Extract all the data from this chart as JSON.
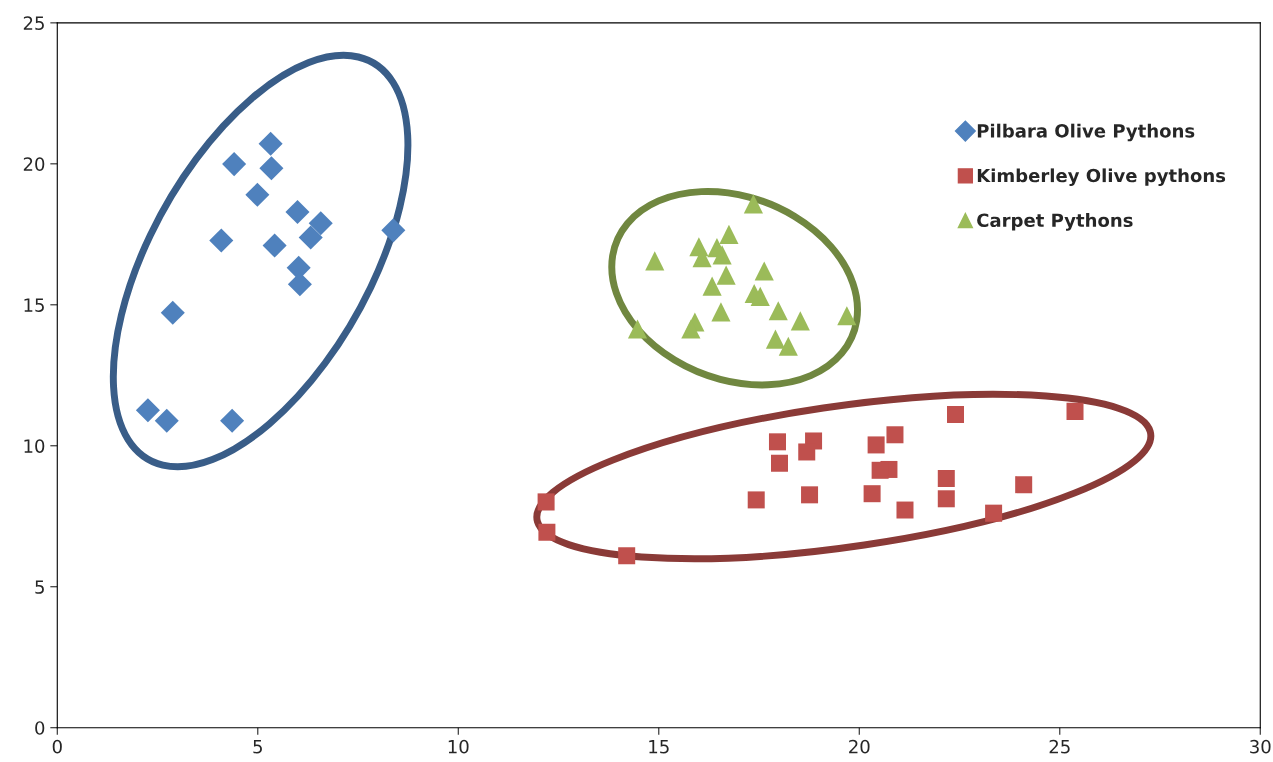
{
  "chart_data": {
    "type": "scatter",
    "xlim": [
      0,
      30
    ],
    "ylim": [
      0,
      25
    ],
    "xticks": [
      0,
      5,
      10,
      15,
      20,
      25,
      30
    ],
    "yticks": [
      0,
      5,
      10,
      15,
      20,
      25
    ],
    "grid": false,
    "legend": "top right",
    "series": [
      {
        "name": "Pilbara Olive Pythons",
        "color": "#4f81bd",
        "marker": "diamond",
        "x": [
          5.32,
          4.41,
          5.34,
          4.99,
          5.99,
          6.57,
          4.09,
          6.32,
          5.42,
          8.38,
          6.02,
          6.05,
          2.88,
          2.26,
          2.73,
          4.36
        ],
        "values": [
          20.71,
          19.99,
          19.84,
          18.9,
          18.29,
          17.89,
          17.28,
          17.39,
          17.1,
          17.64,
          16.31,
          15.73,
          14.72,
          11.26,
          10.89,
          10.89
        ]
      },
      {
        "name": "Kimberley Olive pythons",
        "color": "#c0504d",
        "marker": "square",
        "x": [
          25.38,
          22.4,
          20.89,
          18.86,
          17.96,
          20.42,
          18.69,
          18.01,
          20.74,
          20.52,
          22.17,
          24.1,
          12.19,
          18.76,
          20.32,
          17.43,
          22.17,
          21.14,
          23.35,
          12.21,
          14.2
        ],
        "values": [
          11.22,
          11.11,
          10.39,
          10.17,
          10.14,
          10.03,
          9.78,
          9.38,
          9.16,
          9.13,
          8.84,
          8.62,
          8.01,
          8.26,
          8.3,
          8.08,
          8.12,
          7.72,
          7.61,
          6.93,
          6.1
        ]
      },
      {
        "name": "Carpet Pythons",
        "color": "#9bbb59",
        "marker": "triangle",
        "x": [
          17.36,
          16.75,
          16.0,
          16.45,
          16.58,
          16.08,
          14.9,
          17.63,
          16.68,
          16.33,
          17.38,
          17.53,
          16.55,
          17.98,
          18.53,
          19.69,
          15.9,
          15.8,
          14.47,
          17.91,
          18.23
        ],
        "values": [
          18.58,
          17.5,
          17.06,
          17.03,
          16.77,
          16.67,
          16.56,
          16.2,
          16.05,
          15.66,
          15.4,
          15.3,
          14.75,
          14.79,
          14.43,
          14.61,
          14.39,
          14.14,
          14.14,
          13.78,
          13.53
        ]
      }
    ]
  }
}
